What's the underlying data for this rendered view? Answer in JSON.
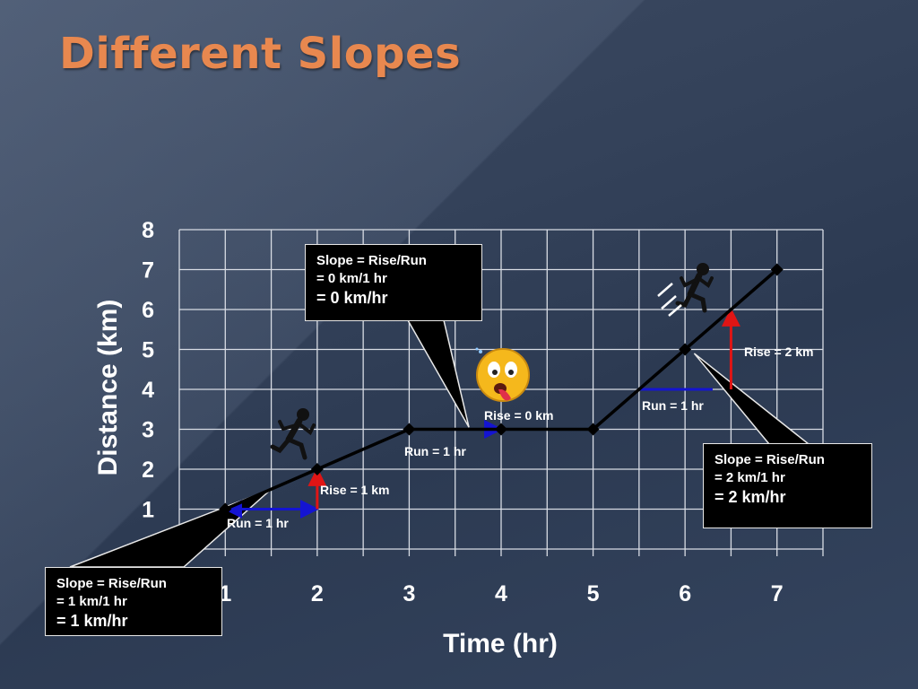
{
  "slide": {
    "title": "Different Slopes"
  },
  "chart_data": {
    "type": "line",
    "title": "Different Slopes",
    "xlabel": "Time (hr)",
    "ylabel": "Distance (km)",
    "xlim": [
      0.5,
      7.5
    ],
    "ylim": [
      0,
      8
    ],
    "x_ticks": [
      1,
      2,
      3,
      4,
      5,
      6,
      7
    ],
    "y_ticks": [
      0,
      1,
      2,
      3,
      4,
      5,
      6,
      7,
      8
    ],
    "grid": true,
    "series": [
      {
        "x": [
          1,
          2,
          3,
          4,
          5,
          6,
          7
        ],
        "y": [
          1,
          2,
          3,
          3,
          3,
          5,
          7
        ],
        "color": "#000000"
      }
    ],
    "rise_run": [
      {
        "run_text": "Run = 1 hr",
        "rise_text": "Rise = 1 km",
        "run": {
          "x": [
            1,
            2
          ],
          "y": 1
        },
        "rise": {
          "x": 2,
          "y": [
            1,
            2
          ]
        }
      },
      {
        "run_text": "Run = 1 hr",
        "rise_text": "Rise = 0 km",
        "run": {
          "x": [
            3,
            4
          ],
          "y": 3
        }
      },
      {
        "run_text": "Run = 1 hr",
        "rise_text": "Rise = 2 km",
        "run": {
          "x": [
            5.5,
            6.3
          ],
          "y": 4
        },
        "rise": {
          "x": 6.5,
          "y": [
            4,
            6
          ]
        }
      }
    ],
    "callouts": [
      {
        "line1": "Slope = Rise/Run",
        "line2": "= 1 km/1 hr",
        "line3": "= 1 km/hr"
      },
      {
        "line1": "Slope = Rise/Run",
        "line2": "= 0 km/1 hr",
        "line3": "= 0 km/hr"
      },
      {
        "line1": "Slope = Rise/Run",
        "line2": "= 2 km/1 hr",
        "line3": "= 2 km/hr"
      }
    ],
    "colors": {
      "run": "#1414d2",
      "rise": "#e01515",
      "grid": "#d8dce4",
      "line": "#000000"
    },
    "icons": [
      "running-man-icon",
      "exhausted-face-icon",
      "sprinting-man-icon"
    ]
  }
}
